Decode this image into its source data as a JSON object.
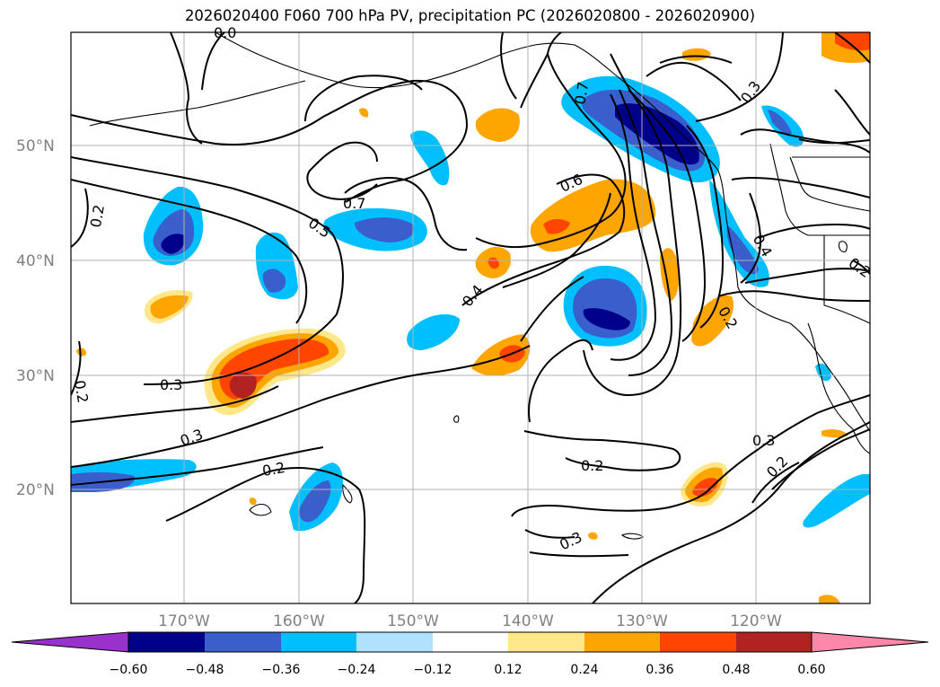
{
  "title": "2026020400 F060 700 hPa PV, precipitation PC (2026020800 - 2026020900)",
  "map": {
    "lat_labels": [
      "50°N",
      "40°N",
      "30°N",
      "20°N"
    ],
    "lon_labels": [
      "170°W",
      "160°W",
      "150°W",
      "140°W",
      "130°W",
      "120°W"
    ],
    "contour_labels": [
      "0.7",
      "0.3",
      "0.2",
      "0.7",
      "0.5",
      "0.6",
      "0.4",
      "0.3",
      "0.3",
      "0.2",
      "0.2",
      "0.3",
      "0.4",
      "0.2",
      "0.2",
      "0.3",
      "0.2",
      "0.2",
      "0.0"
    ]
  },
  "colorbar": {
    "tick_labels": [
      "−0.60",
      "−0.48",
      "−0.36",
      "−0.24",
      "−0.12",
      "0.12",
      "0.24",
      "0.36",
      "0.48",
      "0.60"
    ],
    "colors": [
      "#9932CC",
      "#00008B",
      "#3A5FCD",
      "#00BFFF",
      "#B0E2FF",
      "#FFFFFF",
      "#FFE78A",
      "#FFA500",
      "#FF4500",
      "#B22222",
      "#FF88AA"
    ]
  }
}
